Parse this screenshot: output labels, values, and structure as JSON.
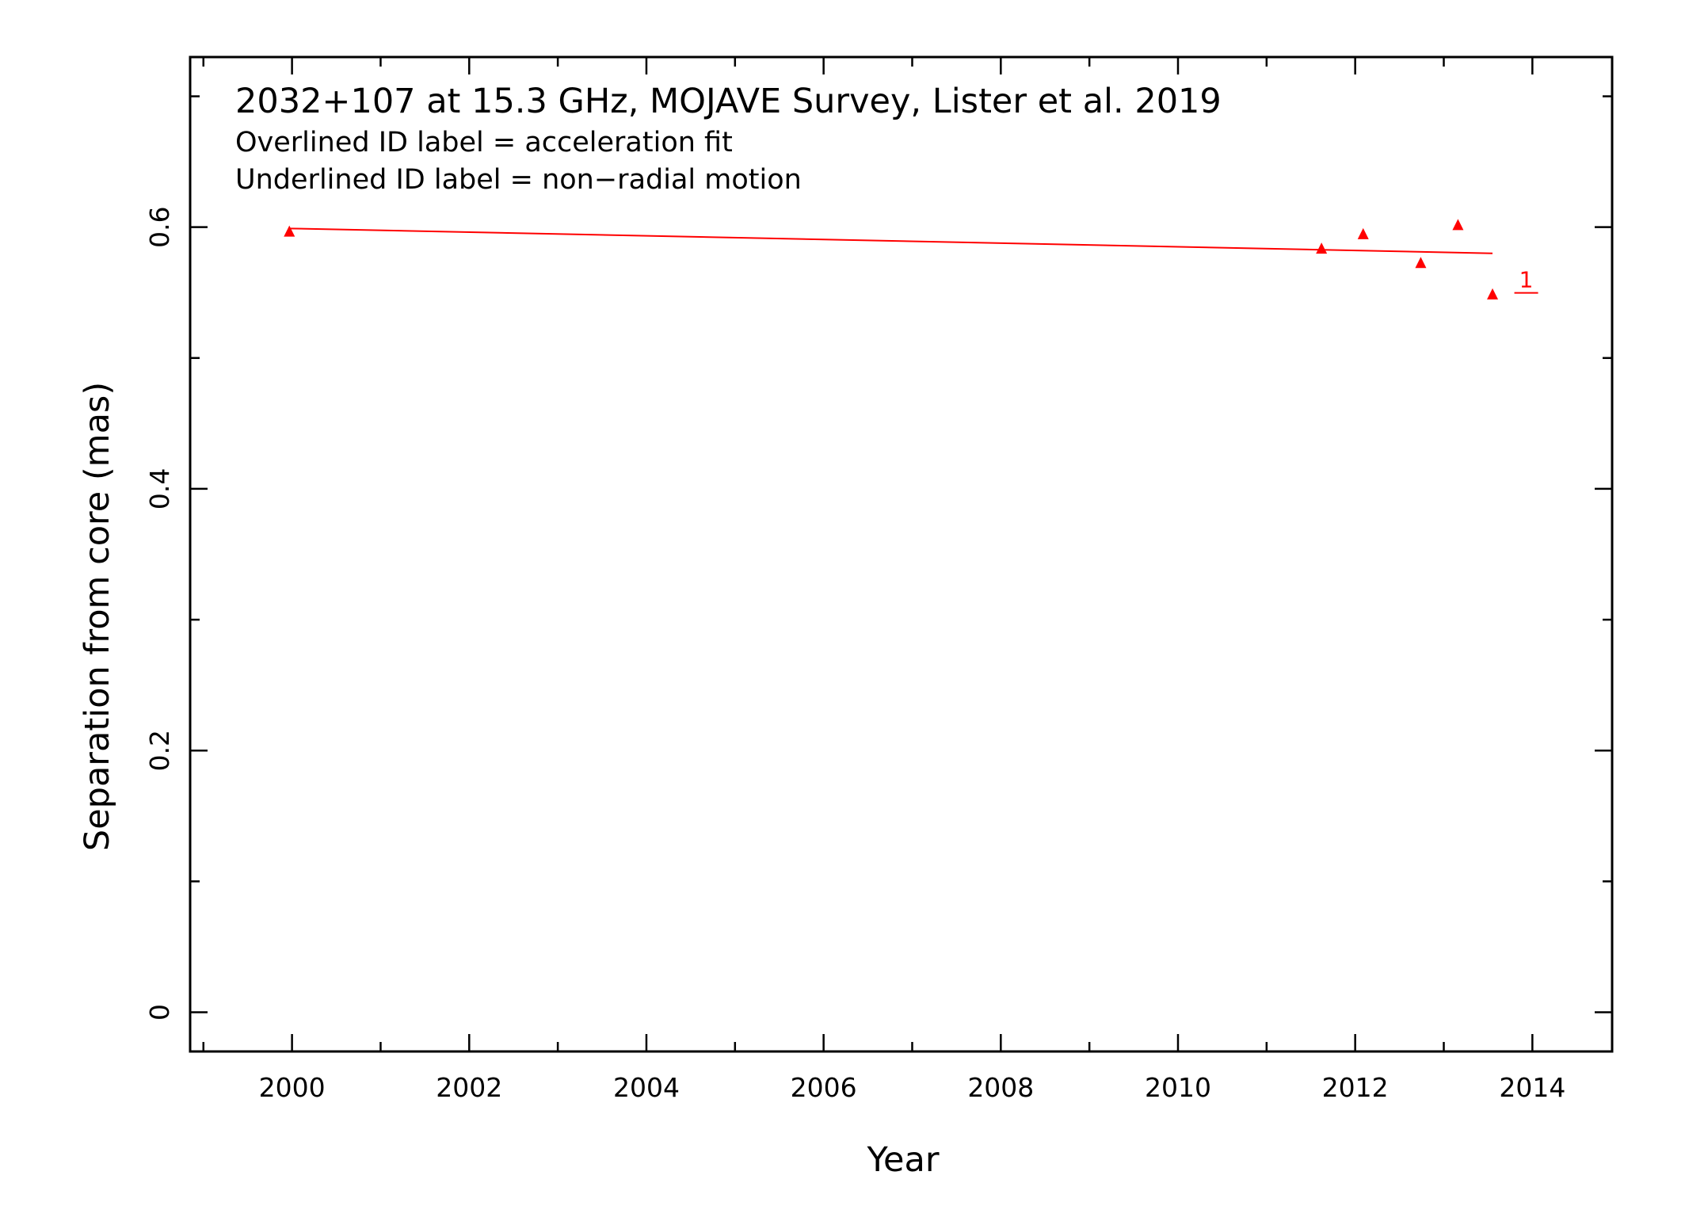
{
  "chart_data": {
    "type": "scatter",
    "title": "2032+107 at 15.3 GHz, MOJAVE Survey, Lister et al. 2019",
    "notes": [
      "Overlined ID label = acceleration fit",
      "Underlined ID label = non−radial motion"
    ],
    "xlabel": "Year",
    "ylabel": "Separation from core (mas)",
    "xlim": [
      1998.85,
      2014.9
    ],
    "ylim": [
      -0.03,
      0.73
    ],
    "x_ticks": [
      2000,
      2002,
      2004,
      2006,
      2008,
      2010,
      2012,
      2014
    ],
    "x_tick_labels": [
      "2000",
      "2002",
      "2004",
      "2006",
      "2008",
      "2010",
      "2012",
      "2014"
    ],
    "y_ticks": [
      0,
      0.2,
      0.4,
      0.6
    ],
    "y_tick_labels": [
      "0",
      "0.2",
      "0.4",
      "0.6"
    ],
    "grid": false,
    "series": [
      {
        "name": "1",
        "color": "#ff0000",
        "marker": "triangle",
        "x": [
          1999.97,
          2011.62,
          2012.09,
          2012.74,
          2013.16,
          2013.55
        ],
        "y": [
          0.597,
          0.584,
          0.595,
          0.573,
          0.602,
          0.549
        ],
        "fit": {
          "x": [
            1999.97,
            2013.55
          ],
          "y": [
            0.599,
            0.58
          ]
        },
        "label": {
          "text": "1",
          "underlined": true,
          "x": 2013.85,
          "y": 0.554
        }
      }
    ]
  }
}
